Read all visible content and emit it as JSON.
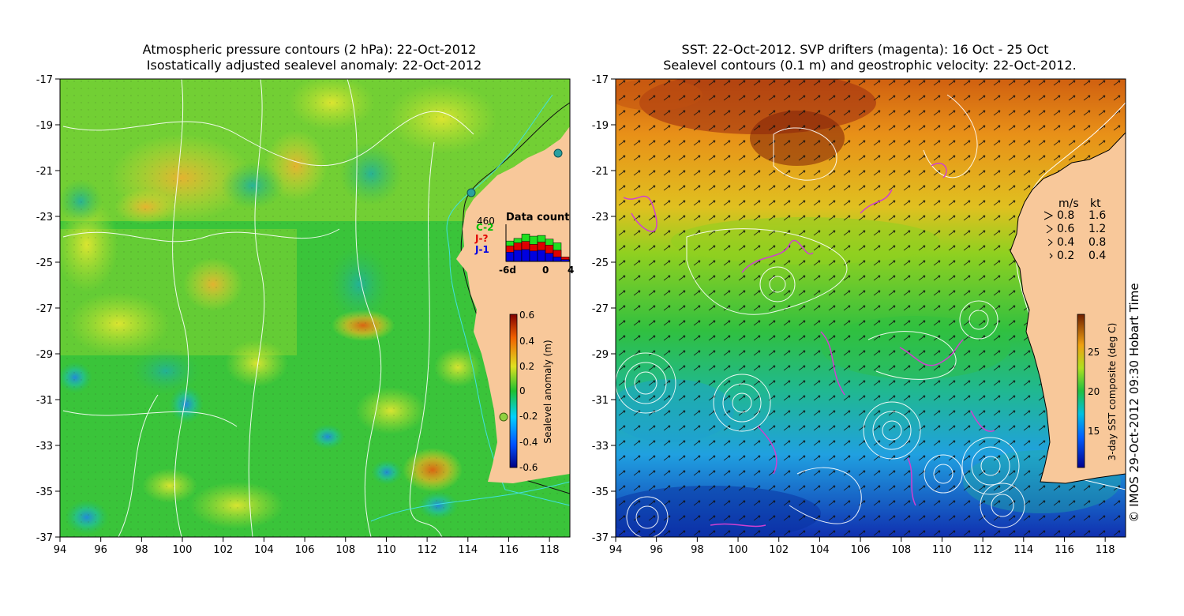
{
  "left_panel": {
    "title_line1": "Atmospheric pressure contours (2 hPa): 22-Oct-2012",
    "title_line2": "Isostatically adjusted sealevel anomaly: 22-Oct-2012",
    "colorbar": {
      "label": "Sealevel anomaly (m)",
      "ticks": [
        "0.6",
        "0.4",
        "0.2",
        "0",
        "-0.2",
        "-0.4",
        "-0.6"
      ]
    },
    "data_count": {
      "title": "Data count",
      "legend_total": "460",
      "legend_c2": "C-2",
      "legend_jq": "J-?",
      "legend_j1": "J-1",
      "x_ticks": [
        "-6d",
        "0",
        "4"
      ],
      "bars": [
        {
          "green": 0.55,
          "red": 0.42,
          "blue": 0.25
        },
        {
          "green": 0.62,
          "red": 0.5,
          "blue": 0.3
        },
        {
          "green": 0.74,
          "red": 0.54,
          "blue": 0.32
        },
        {
          "green": 0.68,
          "red": 0.46,
          "blue": 0.28
        },
        {
          "green": 0.7,
          "red": 0.52,
          "blue": 0.3
        },
        {
          "green": 0.6,
          "red": 0.44,
          "blue": 0.22
        },
        {
          "green": 0.5,
          "red": 0.3,
          "blue": 0.12
        },
        {
          "green": 0.05,
          "red": 0.12,
          "blue": 0.05
        }
      ]
    }
  },
  "right_panel": {
    "title_line1": "SST: 22-Oct-2012. SVP drifters (magenta): 16 Oct - 25 Oct",
    "title_line2": "Sealevel contours (0.1 m) and geostrophic velocity: 22-Oct-2012.",
    "colorbar": {
      "label": "3-day SST composite (deg C)",
      "ticks": [
        "25",
        "20",
        "15"
      ]
    },
    "velocity_legend": {
      "header_ms": "m/s",
      "header_kt": "kt",
      "rows": [
        {
          "ms": "0.8",
          "kt": "1.6"
        },
        {
          "ms": "0.6",
          "kt": "1.2"
        },
        {
          "ms": "0.4",
          "kt": "0.8"
        },
        {
          "ms": "0.2",
          "kt": "0.4"
        }
      ]
    }
  },
  "axes": {
    "x_ticks": [
      "94",
      "96",
      "98",
      "100",
      "102",
      "104",
      "106",
      "108",
      "110",
      "112",
      "114",
      "116",
      "118"
    ],
    "y_ticks": [
      "-17",
      "-19",
      "-21",
      "-23",
      "-25",
      "-27",
      "-29",
      "-31",
      "-33",
      "-35",
      "-37"
    ]
  },
  "copyright": "© IMOS 29-Oct-2012 09:30 Hobart Time",
  "colors": {
    "land": "#f8c89a",
    "drifter": "#d040d0",
    "magenta": "#ff00ff",
    "shelf": "#40e0e0"
  }
}
